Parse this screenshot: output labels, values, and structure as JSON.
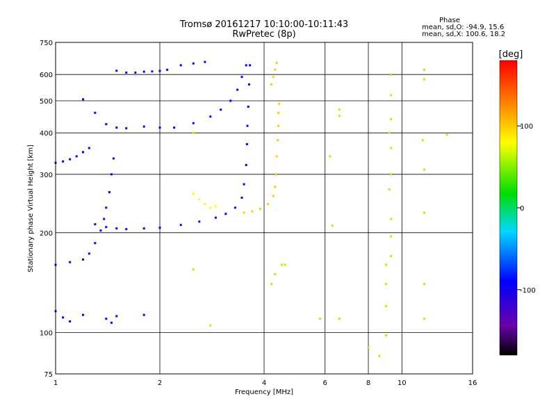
{
  "header": {
    "title_line1": "Tromsø 20161217 10:10:00-10:11:43",
    "title_line2": "RwPretec (8p)",
    "phase_heading": "Phase",
    "phase_line1": "mean, sd,O: -94.9, 15.6",
    "phase_line2": "mean, sd,X: 100.6, 18.2"
  },
  "colorbar": {
    "label": "[deg]",
    "range": [
      -180,
      180
    ],
    "ticks": [
      {
        "value": 100,
        "label": "100"
      },
      {
        "value": 0,
        "label": "0"
      },
      {
        "value": -100,
        "label": "-100"
      }
    ]
  },
  "chart_data": {
    "type": "scatter",
    "xlabel": "Frequency [MHz]",
    "ylabel": "Stationary phase Virtual Height [km]",
    "xscale": "log",
    "yscale": "log",
    "xlim": [
      1,
      16
    ],
    "ylim": [
      75,
      750
    ],
    "xticks": [
      {
        "value": 1,
        "label": "1"
      },
      {
        "value": 2,
        "label": "2"
      },
      {
        "value": 4,
        "label": "4"
      },
      {
        "value": 6,
        "label": "6"
      },
      {
        "value": 8,
        "label": "8"
      },
      {
        "value": 10,
        "label": "10"
      },
      {
        "value": 16,
        "label": "16"
      }
    ],
    "yticks": [
      {
        "value": 75,
        "label": "75"
      },
      {
        "value": 100,
        "label": "100"
      },
      {
        "value": 200,
        "label": "200"
      },
      {
        "value": 300,
        "label": "300"
      },
      {
        "value": 400,
        "label": "400"
      },
      {
        "value": 500,
        "label": "500"
      },
      {
        "value": 600,
        "label": "600"
      },
      {
        "value": 750,
        "label": "750"
      }
    ],
    "grid": true,
    "color_dimension": "phase [deg]",
    "series": [
      {
        "phase": -95,
        "points": [
          [
            1.0,
            160
          ],
          [
            1.1,
            163
          ],
          [
            1.2,
            166
          ],
          [
            1.25,
            173
          ],
          [
            1.3,
            186
          ],
          [
            1.35,
            203
          ],
          [
            1.38,
            220
          ],
          [
            1.4,
            238
          ],
          [
            1.43,
            265
          ],
          [
            1.45,
            300
          ],
          [
            1.47,
            335
          ]
        ]
      },
      {
        "phase": -90,
        "points": [
          [
            1.3,
            212
          ],
          [
            1.4,
            208
          ],
          [
            1.5,
            206
          ],
          [
            1.6,
            205
          ],
          [
            1.8,
            206
          ],
          [
            2.0,
            207
          ],
          [
            2.3,
            211
          ],
          [
            2.6,
            216
          ],
          [
            2.9,
            222
          ],
          [
            3.1,
            228
          ],
          [
            3.3,
            238
          ],
          [
            3.45,
            255
          ],
          [
            3.5,
            280
          ],
          [
            3.55,
            320
          ],
          [
            3.57,
            370
          ],
          [
            3.58,
            420
          ],
          [
            3.6,
            480
          ],
          [
            3.62,
            560
          ],
          [
            3.64,
            640
          ]
        ]
      },
      {
        "phase": -92,
        "points": [
          [
            1.2,
            505
          ],
          [
            1.3,
            460
          ],
          [
            1.4,
            425
          ],
          [
            1.5,
            415
          ],
          [
            1.6,
            413
          ],
          [
            1.8,
            418
          ],
          [
            2.0,
            415
          ],
          [
            2.2,
            415
          ],
          [
            2.5,
            428
          ],
          [
            2.8,
            448
          ],
          [
            3.0,
            470
          ],
          [
            3.2,
            500
          ],
          [
            3.35,
            540
          ],
          [
            3.45,
            590
          ],
          [
            3.55,
            640
          ]
        ]
      },
      {
        "phase": -90,
        "points": [
          [
            1.0,
            325
          ],
          [
            1.05,
            328
          ],
          [
            1.1,
            333
          ],
          [
            1.15,
            340
          ],
          [
            1.2,
            350
          ],
          [
            1.25,
            360
          ]
        ]
      },
      {
        "phase": -95,
        "points": [
          [
            1.5,
            616
          ],
          [
            1.6,
            608
          ],
          [
            1.7,
            608
          ],
          [
            1.8,
            612
          ],
          [
            1.9,
            613
          ],
          [
            2.0,
            615
          ],
          [
            2.1,
            620
          ]
        ]
      },
      {
        "phase": -95,
        "points": [
          [
            2.3,
            640
          ],
          [
            2.5,
            648
          ],
          [
            2.7,
            655
          ]
        ]
      },
      {
        "phase": -98,
        "points": [
          [
            1.0,
            116
          ],
          [
            1.05,
            111
          ],
          [
            1.1,
            108
          ],
          [
            1.2,
            113
          ],
          [
            1.4,
            110
          ],
          [
            1.45,
            107
          ],
          [
            1.5,
            112
          ],
          [
            1.8,
            113
          ]
        ]
      },
      {
        "phase": 100,
        "points": [
          [
            3.5,
            230
          ],
          [
            3.7,
            232
          ],
          [
            3.9,
            236
          ],
          [
            4.1,
            244
          ],
          [
            4.25,
            258
          ],
          [
            4.3,
            275
          ],
          [
            4.33,
            300
          ],
          [
            4.35,
            340
          ],
          [
            4.38,
            380
          ],
          [
            4.4,
            420
          ],
          [
            4.4,
            460
          ],
          [
            4.42,
            490
          ]
        ]
      },
      {
        "phase": 100,
        "points": [
          [
            4.2,
            560
          ],
          [
            4.25,
            590
          ],
          [
            4.3,
            620
          ],
          [
            4.35,
            650
          ]
        ]
      },
      {
        "phase": 80,
        "points": [
          [
            2.5,
            262
          ],
          [
            2.6,
            252
          ],
          [
            2.7,
            244
          ],
          [
            2.8,
            238
          ],
          [
            2.9,
            240
          ]
        ]
      },
      {
        "phase": 60,
        "points": [
          [
            9.3,
            600
          ],
          [
            9.3,
            520
          ],
          [
            9.3,
            440
          ],
          [
            9.2,
            400
          ],
          [
            9.3,
            360
          ],
          [
            9.3,
            300
          ],
          [
            9.2,
            270
          ],
          [
            9.3,
            220
          ],
          [
            9.3,
            195
          ],
          [
            9.3,
            170
          ],
          [
            9.0,
            160
          ],
          [
            9.0,
            140
          ],
          [
            9.0,
            120
          ],
          [
            8.6,
            85
          ],
          [
            9.0,
            98
          ]
        ]
      },
      {
        "phase": 60,
        "points": [
          [
            6.6,
            470
          ],
          [
            6.6,
            450
          ],
          [
            6.6,
            110
          ],
          [
            11.6,
            620
          ],
          [
            11.6,
            580
          ],
          [
            11.5,
            380
          ],
          [
            11.6,
            310
          ],
          [
            11.6,
            230
          ],
          [
            11.6,
            140
          ],
          [
            11.6,
            110
          ],
          [
            13.5,
            395
          ],
          [
            2.5,
            400
          ],
          [
            2.5,
            155
          ],
          [
            2.8,
            105
          ],
          [
            4.2,
            140
          ],
          [
            4.3,
            150
          ],
          [
            4.5,
            160
          ],
          [
            4.6,
            160
          ],
          [
            6.3,
            210
          ],
          [
            6.2,
            340
          ],
          [
            5.8,
            110
          ],
          [
            8.0,
            90
          ]
        ]
      }
    ]
  }
}
